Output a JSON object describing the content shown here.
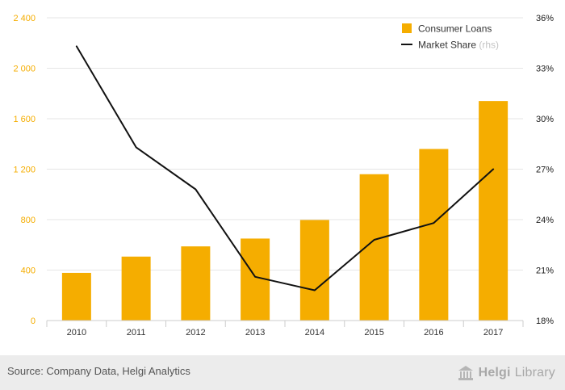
{
  "colors": {
    "bar": "#f5ad00",
    "line": "#111111",
    "grid": "#e6e6e6",
    "left_axis_text": "#f5ad00",
    "right_axis_text": "#1a1a1a",
    "footer_bg": "#ececec"
  },
  "chart_data": {
    "type": "bar",
    "categories": [
      "2010",
      "2011",
      "2012",
      "2013",
      "2014",
      "2015",
      "2016",
      "2017"
    ],
    "series": [
      {
        "name": "Consumer Loans",
        "type": "bar",
        "axis": "left",
        "values": [
          378,
          507,
          588,
          650,
          797,
          1160,
          1360,
          1740
        ]
      },
      {
        "name": "Market Share",
        "legend_suffix": "(rhs)",
        "type": "line",
        "axis": "right",
        "values": [
          34.3,
          28.3,
          25.8,
          20.6,
          19.8,
          22.8,
          23.8,
          27.0
        ]
      }
    ],
    "left_axis": {
      "ylim": [
        0,
        2400
      ],
      "ticks": [
        0,
        400,
        800,
        1200,
        1600,
        2000,
        2400
      ],
      "tick_labels": [
        "0",
        "400",
        "800",
        "1 200",
        "1 600",
        "2 000",
        "2 400"
      ]
    },
    "right_axis": {
      "ylim": [
        18,
        36
      ],
      "ticks": [
        18,
        21,
        24,
        27,
        30,
        33,
        36
      ],
      "tick_labels": [
        "18%",
        "21%",
        "24%",
        "27%",
        "30%",
        "33%",
        "36%"
      ]
    },
    "grid": true,
    "legend_position": "top-right"
  },
  "footer": {
    "source": "Source: Company Data, Helgi Analytics",
    "brand_part1": "Helgi",
    "brand_part2": "Library"
  }
}
